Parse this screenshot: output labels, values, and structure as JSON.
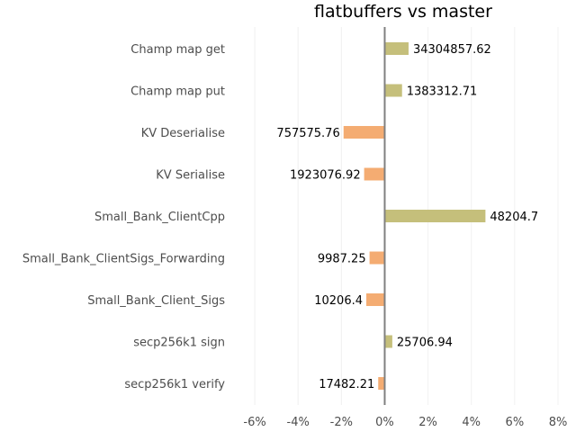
{
  "chart_data": {
    "type": "bar",
    "orientation": "horizontal",
    "title": "flatbuffers vs master",
    "xlabel": "",
    "ylabel": "",
    "xlim": [
      -0.07,
      0.08
    ],
    "x_ticks": [
      -0.06,
      -0.04,
      -0.02,
      0,
      0.02,
      0.04,
      0.06,
      0.08
    ],
    "x_tick_labels": [
      "-6%",
      "-4%",
      "-2%",
      "0%",
      "2%",
      "4%",
      "6%",
      "8%"
    ],
    "grid": "vertical",
    "categories": [
      "Champ map get",
      "Champ map put",
      "KV Deserialise",
      "KV Serialise",
      "Small_Bank_ClientCpp",
      "Small_Bank_ClientSigs_Forwarding",
      "Small_Bank_Client_Sigs",
      "secp256k1 sign",
      "secp256k1 verify"
    ],
    "values": [
      0.011,
      0.008,
      -0.019,
      -0.0095,
      0.0465,
      -0.007,
      -0.0085,
      0.0035,
      -0.003
    ],
    "data_labels": [
      "34304857.62",
      "1383312.71",
      "757575.76",
      "1923076.92",
      "48204.7",
      "9987.25",
      "10206.4",
      "25706.94",
      "17482.21"
    ],
    "colors": {
      "positive": "#c5bf7b",
      "negative": "#f4ac72",
      "zero_line": "#808080",
      "grid": "#f0f0f0"
    }
  }
}
